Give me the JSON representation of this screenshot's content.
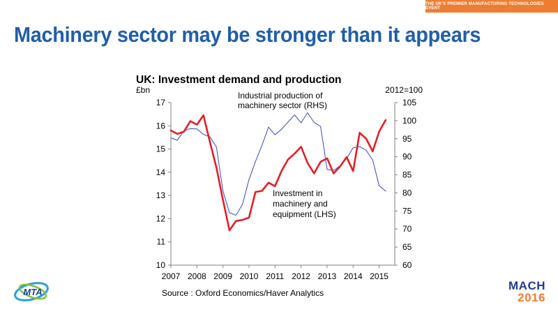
{
  "banner": {
    "text": "THE UK'S PREMIER MANUFACTURING TECHNOLOGIES EVENT"
  },
  "slide": {
    "title": "Machinery sector may be stronger than it appears"
  },
  "logos": {
    "left_name": "MTA",
    "right_line1": "MACH",
    "right_line2": "2016"
  },
  "colors": {
    "title": "#1f5faa",
    "banner": "#ee7d31",
    "investment": "#e31e24",
    "production": "#4a55c8"
  },
  "chart_data": {
    "type": "line",
    "title": "UK: Investment demand and production",
    "ylabel_left": "£bn",
    "ylabel_right": "2012=100",
    "source": "Source : Oxford Economics/Haver Analytics",
    "xlim": [
      2007,
      2015.6
    ],
    "ylim_left": [
      10,
      17
    ],
    "ylim_right": [
      60,
      105
    ],
    "x_ticks": [
      "2007",
      "2008",
      "2009",
      "2010",
      "2011",
      "2012",
      "2013",
      "2014",
      "2015"
    ],
    "y_ticks_left": [
      10,
      11,
      12,
      13,
      14,
      15,
      16,
      17
    ],
    "y_ticks_right": [
      60,
      65,
      70,
      75,
      80,
      85,
      90,
      95,
      100,
      105
    ],
    "series": [
      {
        "name": "Investment in machinery and equipment (LHS)",
        "axis": "left",
        "x": [
          2007.0,
          2007.25,
          2007.5,
          2007.75,
          2008.0,
          2008.25,
          2008.5,
          2008.75,
          2009.0,
          2009.25,
          2009.5,
          2009.75,
          2010.0,
          2010.25,
          2010.5,
          2010.75,
          2011.0,
          2011.25,
          2011.5,
          2011.75,
          2012.0,
          2012.25,
          2012.5,
          2012.75,
          2013.0,
          2013.25,
          2013.5,
          2013.75,
          2014.0,
          2014.25,
          2014.5,
          2014.75,
          2015.0,
          2015.25
        ],
        "values": [
          15.8,
          15.65,
          15.75,
          16.2,
          16.05,
          16.45,
          15.3,
          14.2,
          12.8,
          11.5,
          11.9,
          11.95,
          12.05,
          13.15,
          13.2,
          13.55,
          13.4,
          14.05,
          14.55,
          14.8,
          15.1,
          14.4,
          13.95,
          14.45,
          14.6,
          13.95,
          14.25,
          14.65,
          14.05,
          15.7,
          15.45,
          14.9,
          15.75,
          16.25
        ]
      },
      {
        "name": "Industrial production of machinery sector (RHS)",
        "axis": "right",
        "x": [
          2007.0,
          2007.25,
          2007.5,
          2007.75,
          2008.0,
          2008.25,
          2008.5,
          2008.75,
          2009.0,
          2009.25,
          2009.5,
          2009.75,
          2010.0,
          2010.25,
          2010.5,
          2010.75,
          2011.0,
          2011.25,
          2011.5,
          2011.75,
          2012.0,
          2012.25,
          2012.5,
          2012.75,
          2013.0,
          2013.25,
          2013.5,
          2013.75,
          2014.0,
          2014.25,
          2014.5,
          2014.75,
          2015.0,
          2015.25
        ],
        "values": [
          95.2,
          94.6,
          97.2,
          97.8,
          97.7,
          96.2,
          95.5,
          92.7,
          80.5,
          74.5,
          73.8,
          76.8,
          83.7,
          88.7,
          93.2,
          98.2,
          96.1,
          97.6,
          99.6,
          101.6,
          99.4,
          102.2,
          99.5,
          98.4,
          86.5,
          86.2,
          87.5,
          89.5,
          92.5,
          92.8,
          91.8,
          89.1,
          82.0,
          80.5
        ]
      }
    ],
    "annotations": {
      "production_label": [
        "Industrial production of",
        "machinery sector (RHS)"
      ],
      "investment_label": [
        "Investment in",
        "machinery and",
        "equipment (LHS)"
      ]
    },
    "grid": false,
    "legend": "none"
  }
}
